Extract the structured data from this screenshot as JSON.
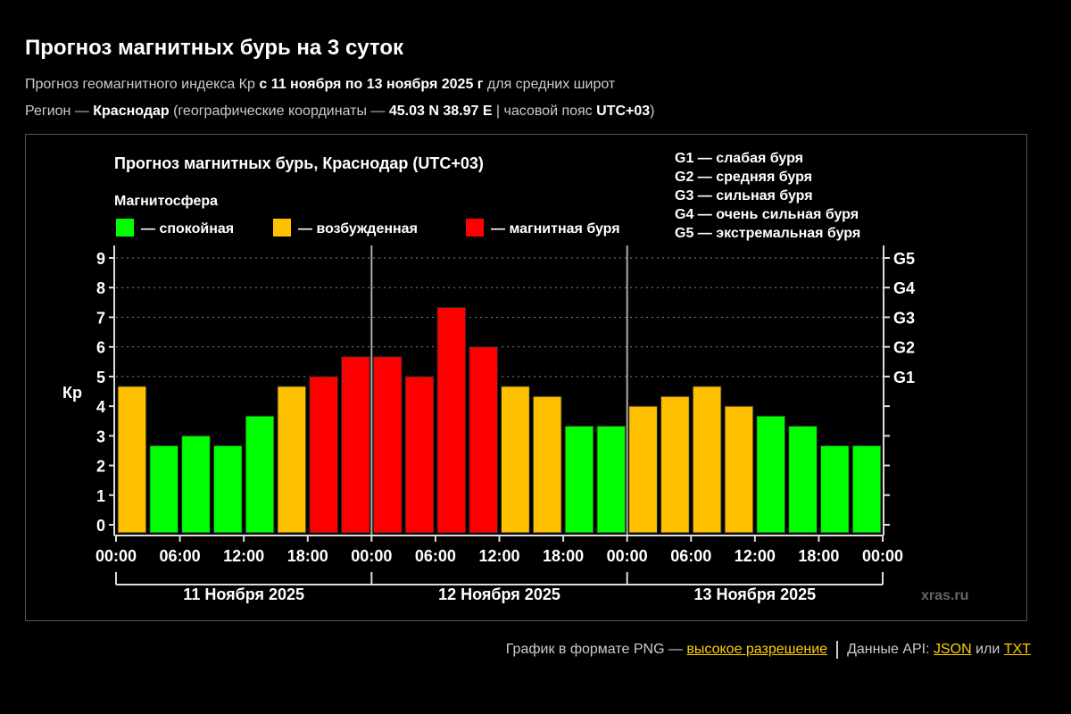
{
  "page": {
    "title": "Прогноз магнитных бурь на 3 суток",
    "subtitle": {
      "pre": "Прогноз геомагнитного индекса Кр ",
      "bold": "с 11 ноября по 13 ноября 2025 г",
      "post": " для средних широт"
    },
    "region": {
      "pre": "Регион — ",
      "city": "Краснодар",
      "mid": " (географические координаты — ",
      "coords": "45.03 N 38.97 E",
      "mid2": " | часовой пояс ",
      "tz": "UTC+03",
      "post": ")"
    },
    "footer": {
      "png_text": "График в формате PNG — ",
      "png_link": "высокое разрешение",
      "api_text": "Данные API: ",
      "json_link": "JSON",
      "or_text": " или ",
      "txt_link": "TXT"
    }
  },
  "chart_data": {
    "type": "bar",
    "title": "Прогноз магнитных бурь, Краснодар (UTC+03)",
    "legend_title": "Магнитосфера",
    "legend": [
      {
        "label": "— спокойная",
        "color": "#00ff00"
      },
      {
        "label": "— возбужденная",
        "color": "#ffc000"
      },
      {
        "label": "— магнитная буря",
        "color": "#ff0000"
      }
    ],
    "g_legend": [
      "G1 — слабая буря",
      "G2 — средняя буря",
      "G3 — сильная буря",
      "G4 — очень сильная буря",
      "G5 — экстремальная буря"
    ],
    "ylabel": "Кр",
    "ylim": [
      0,
      9
    ],
    "y_ticks": [
      "0",
      "1",
      "2",
      "3",
      "4",
      "5",
      "6",
      "7",
      "8",
      "9"
    ],
    "right_ticks": {
      "5": "G1",
      "6": "G2",
      "7": "G3",
      "8": "G4",
      "9": "G5"
    },
    "x_ticks": [
      "00:00",
      "06:00",
      "12:00",
      "18:00",
      "00:00",
      "06:00",
      "12:00",
      "18:00",
      "00:00",
      "06:00",
      "12:00",
      "18:00",
      "00:00"
    ],
    "days": [
      "11 Ноября 2025",
      "12 Ноября 2025",
      "13 Ноября 2025"
    ],
    "interval_hours": 3,
    "values": [
      4.67,
      2.67,
      3.0,
      2.67,
      3.67,
      4.67,
      5.0,
      5.67,
      5.67,
      5.0,
      7.33,
      6.0,
      4.67,
      4.33,
      3.33,
      3.33,
      4.0,
      4.33,
      4.67,
      4.0,
      3.67,
      3.33,
      2.67,
      2.67
    ],
    "levels": [
      "orange",
      "green",
      "green",
      "green",
      "green",
      "orange",
      "red",
      "red",
      "red",
      "red",
      "red",
      "red",
      "orange",
      "orange",
      "green",
      "green",
      "orange",
      "orange",
      "orange",
      "orange",
      "green",
      "green",
      "green",
      "green"
    ],
    "level_colors": {
      "green": "#00ff00",
      "orange": "#ffc000",
      "red": "#ff0000"
    },
    "grid": "dotted horizontal at 5-9",
    "watermark": "xras.ru"
  }
}
